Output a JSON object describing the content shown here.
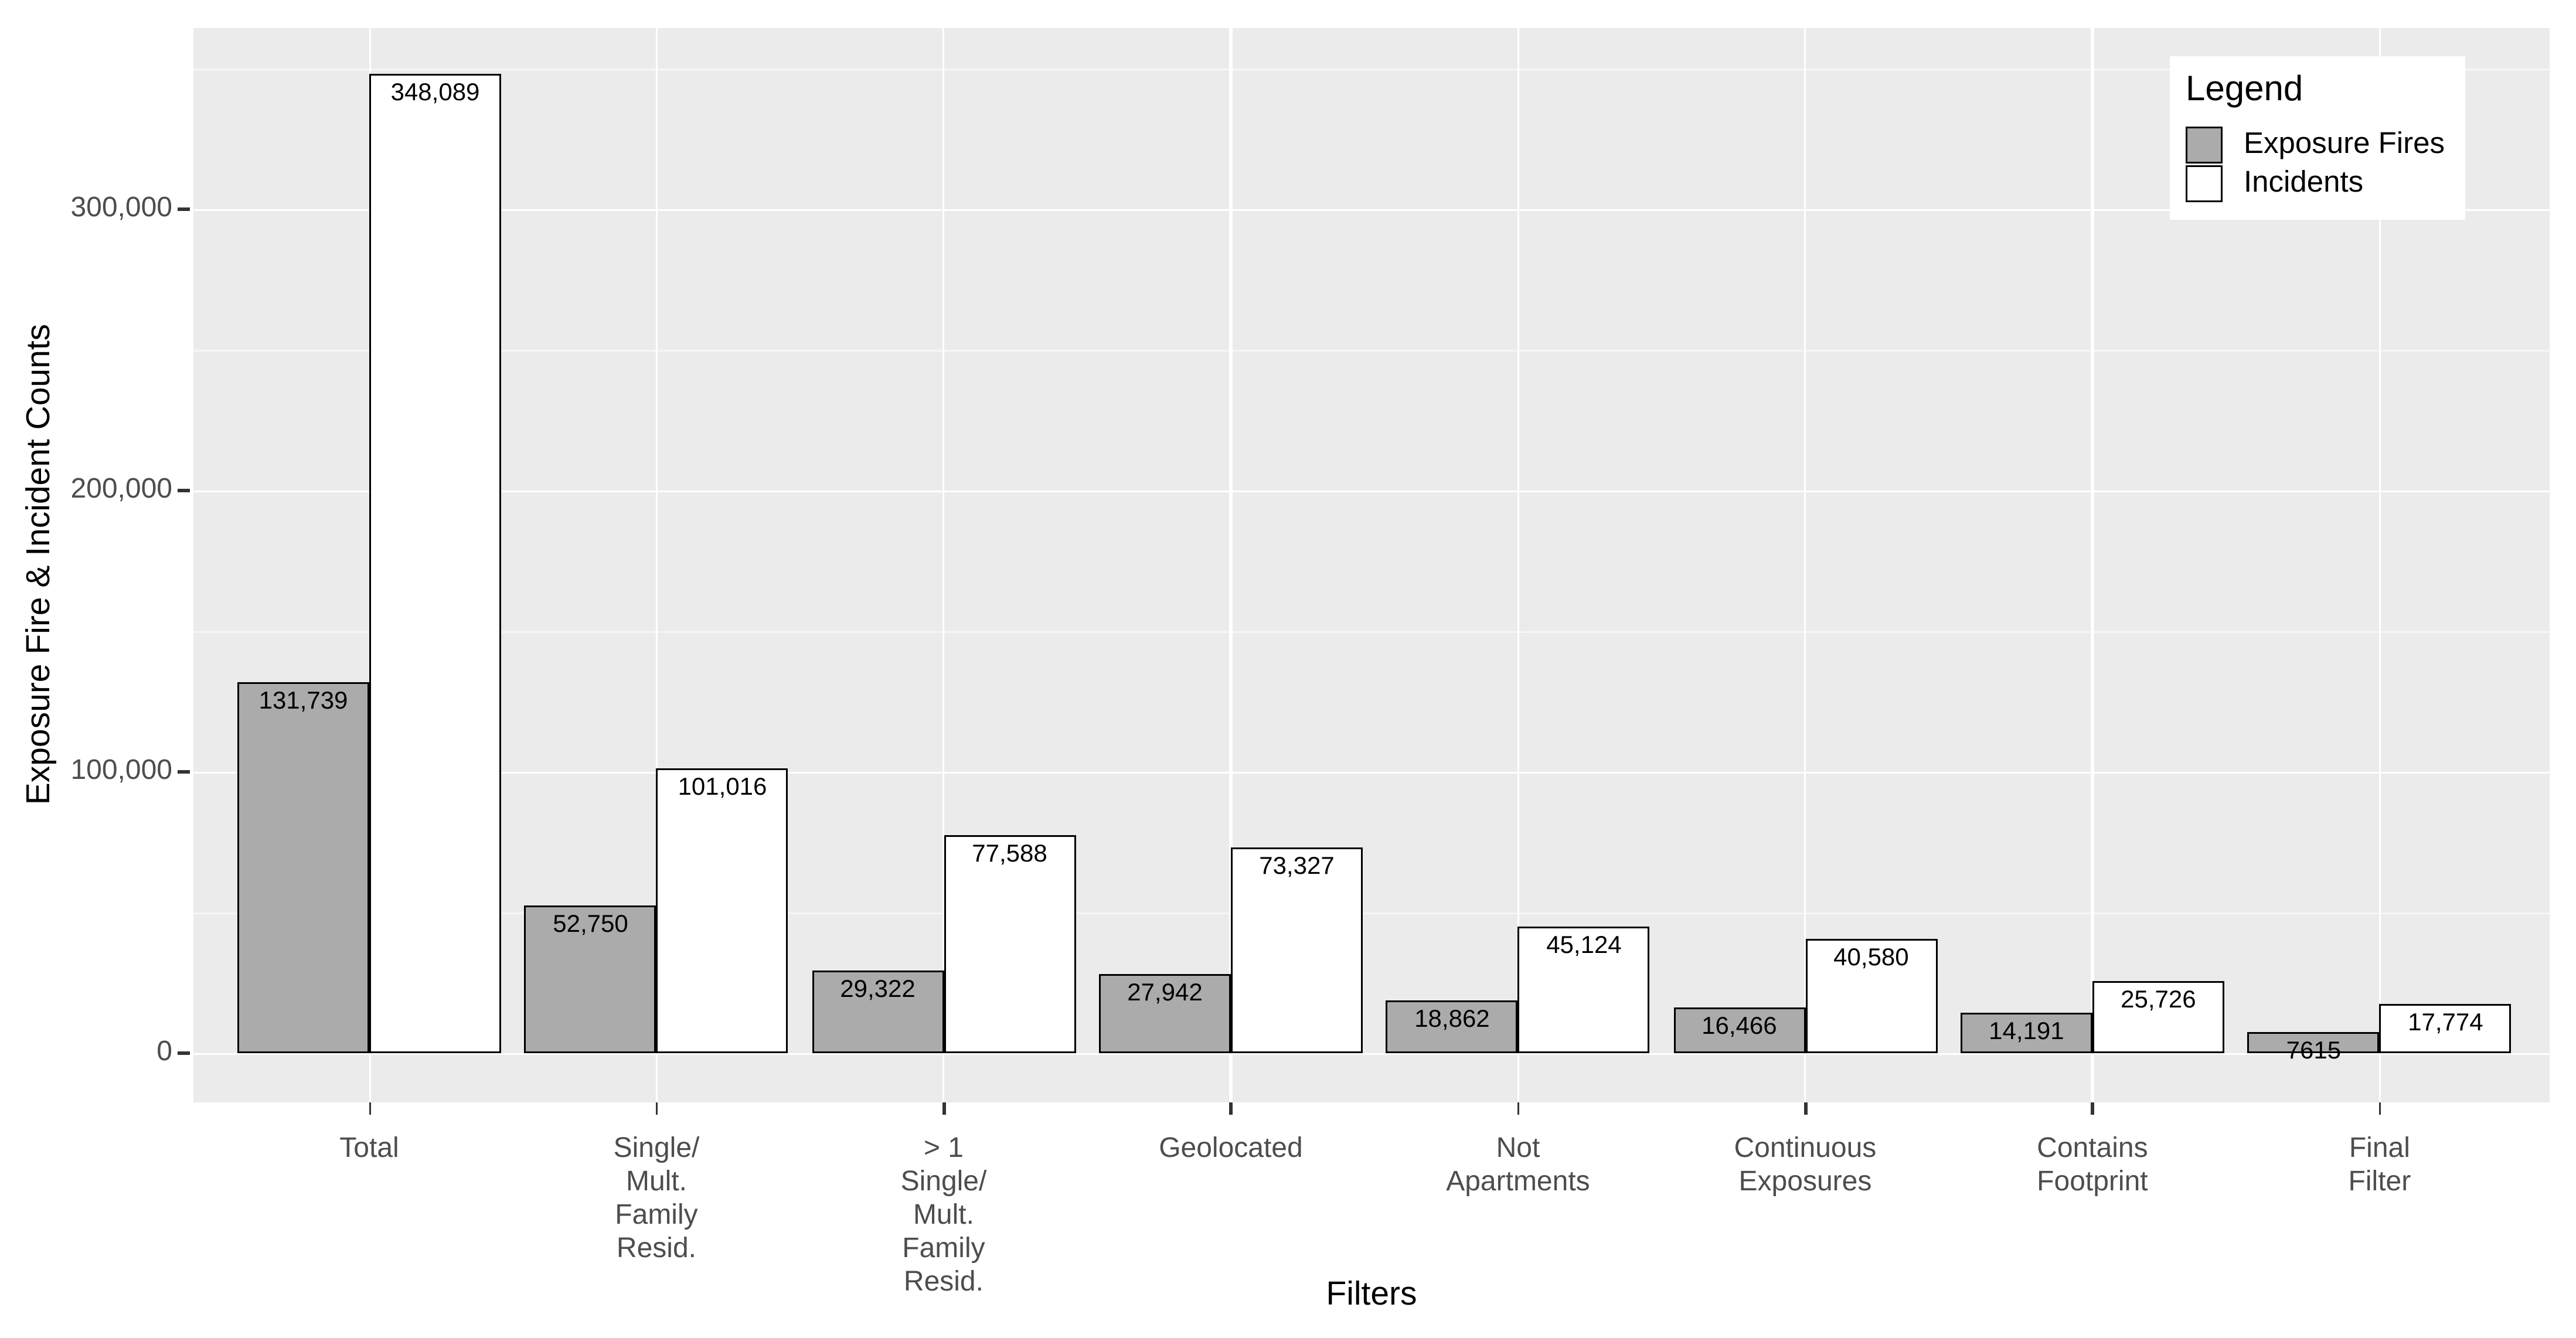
{
  "chart_data": {
    "type": "bar",
    "title": "",
    "xlabel": "Filters",
    "ylabel": "Exposure Fire & Incident Counts",
    "categories": [
      "Total",
      "Single/\nMult.\nFamily\nResid.",
      "> 1\nSingle/\nMult.\nFamily\nResid.",
      "Geolocated",
      "Not\nApartments",
      "Continuous\nExposures",
      "Contains\nFootprint",
      "Final\nFilter"
    ],
    "series": [
      {
        "name": "Exposure Fires",
        "fill": "#ababab",
        "values": [
          131739,
          52750,
          29322,
          27942,
          18862,
          16466,
          14191,
          7615
        ],
        "labels": [
          "131,739",
          "52,750",
          "29,322",
          "27,942",
          "18,862",
          "16,466",
          "14,191",
          "7615"
        ]
      },
      {
        "name": "Incidents",
        "fill": "#ffffff",
        "values": [
          348089,
          101016,
          77588,
          73327,
          45124,
          40580,
          25726,
          17774
        ],
        "labels": [
          "348,089",
          "101,016",
          "77,588",
          "73,327",
          "45,124",
          "40,580",
          "25,726",
          "17,774"
        ]
      }
    ],
    "y_axis": {
      "tick_values": [
        0,
        100000,
        200000,
        300000
      ],
      "tick_labels": [
        "0",
        "100,000",
        "200,000",
        "300,000"
      ],
      "minor_tick_values": [
        50000,
        150000,
        250000,
        350000
      ],
      "range": [
        0,
        367000
      ]
    },
    "legend": {
      "title": "Legend",
      "position": "top-right-inside"
    },
    "grid": {
      "horizontal": "major+minor",
      "vertical": "major-at-categories"
    },
    "style": {
      "panel_bg": "#ebebeb",
      "gridline": "#ffffff",
      "bar_outline": "#000000",
      "axis_text_color": "#4d4d4d",
      "title_color": "#000000",
      "bar_label_color": "#000000"
    }
  }
}
